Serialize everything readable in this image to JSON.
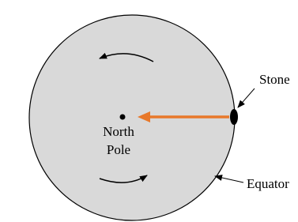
{
  "labels": {
    "stone": "Stone",
    "north_pole": [
      "North",
      "Pole"
    ],
    "equator": "Equator"
  }
}
